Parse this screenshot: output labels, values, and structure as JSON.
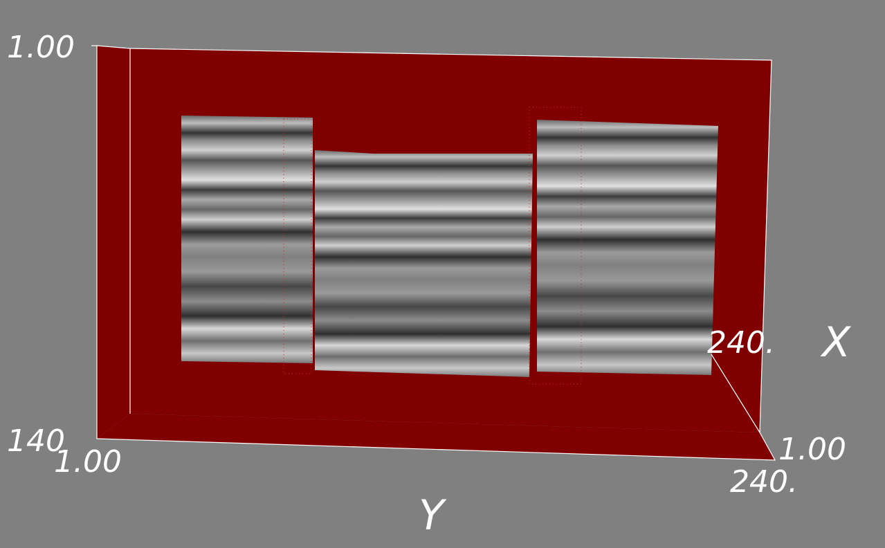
{
  "axes": {
    "z_top": "1.00",
    "z_bottom": "140",
    "y_start": "1.00",
    "x_end": "240.",
    "x_title": "X",
    "x_start": "1.00",
    "y_end": "240.",
    "y_title": "Y"
  }
}
